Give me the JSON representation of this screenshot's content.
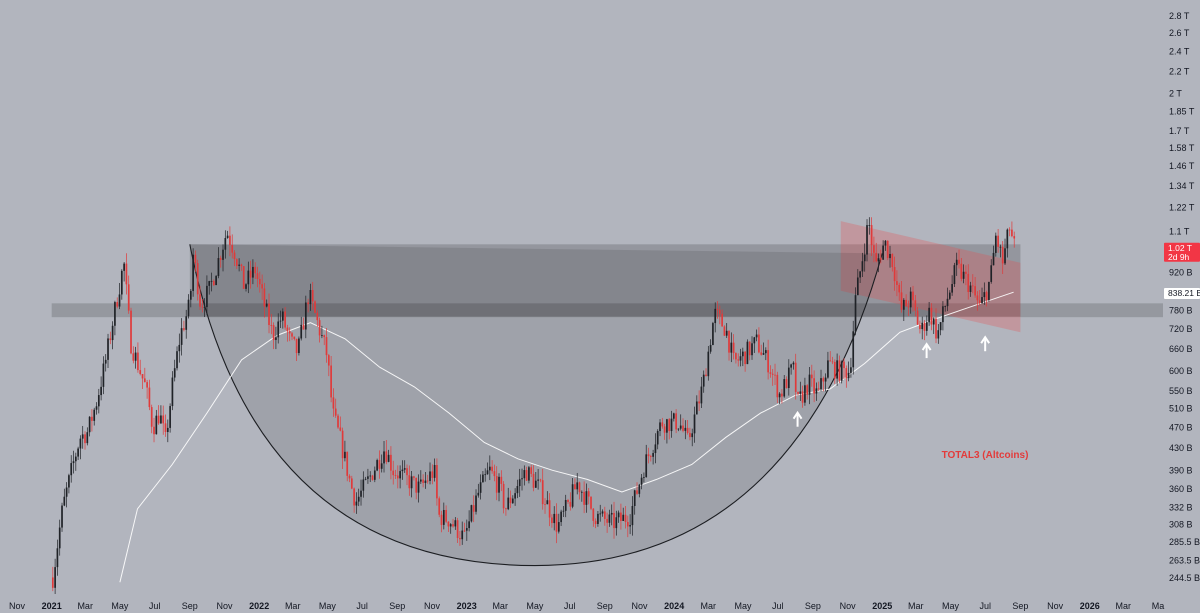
{
  "chart_data": {
    "type": "candlestick",
    "title": "TOTAL3 (Altcoins)",
    "y_scale": "log",
    "ylim": [
      230,
      2900
    ],
    "xlim": [
      "2020-11-01",
      "2026-05-01"
    ],
    "x_tick_labels": [
      {
        "date": "2020-11-01",
        "label": "Nov",
        "bold": false
      },
      {
        "date": "2021-01-01",
        "label": "2021",
        "bold": true
      },
      {
        "date": "2021-03-01",
        "label": "Mar",
        "bold": false
      },
      {
        "date": "2021-05-01",
        "label": "May",
        "bold": false
      },
      {
        "date": "2021-07-01",
        "label": "Jul",
        "bold": false
      },
      {
        "date": "2021-09-01",
        "label": "Sep",
        "bold": false
      },
      {
        "date": "2021-11-01",
        "label": "Nov",
        "bold": false
      },
      {
        "date": "2022-01-01",
        "label": "2022",
        "bold": true
      },
      {
        "date": "2022-03-01",
        "label": "Mar",
        "bold": false
      },
      {
        "date": "2022-05-01",
        "label": "May",
        "bold": false
      },
      {
        "date": "2022-07-01",
        "label": "Jul",
        "bold": false
      },
      {
        "date": "2022-09-01",
        "label": "Sep",
        "bold": false
      },
      {
        "date": "2022-11-01",
        "label": "Nov",
        "bold": false
      },
      {
        "date": "2023-01-01",
        "label": "2023",
        "bold": true
      },
      {
        "date": "2023-03-01",
        "label": "Mar",
        "bold": false
      },
      {
        "date": "2023-05-01",
        "label": "May",
        "bold": false
      },
      {
        "date": "2023-07-01",
        "label": "Jul",
        "bold": false
      },
      {
        "date": "2023-09-01",
        "label": "Sep",
        "bold": false
      },
      {
        "date": "2023-11-01",
        "label": "Nov",
        "bold": false
      },
      {
        "date": "2024-01-01",
        "label": "2024",
        "bold": true
      },
      {
        "date": "2024-03-01",
        "label": "Mar",
        "bold": false
      },
      {
        "date": "2024-05-01",
        "label": "May",
        "bold": false
      },
      {
        "date": "2024-07-01",
        "label": "Jul",
        "bold": false
      },
      {
        "date": "2024-09-01",
        "label": "Sep",
        "bold": false
      },
      {
        "date": "2024-11-01",
        "label": "Nov",
        "bold": false
      },
      {
        "date": "2025-01-01",
        "label": "2025",
        "bold": true
      },
      {
        "date": "2025-03-01",
        "label": "Mar",
        "bold": false
      },
      {
        "date": "2025-05-01",
        "label": "May",
        "bold": false
      },
      {
        "date": "2025-07-01",
        "label": "Jul",
        "bold": false
      },
      {
        "date": "2025-09-01",
        "label": "Sep",
        "bold": false
      },
      {
        "date": "2025-11-01",
        "label": "Nov",
        "bold": false
      },
      {
        "date": "2026-01-01",
        "label": "2026",
        "bold": true
      },
      {
        "date": "2026-03-01",
        "label": "Mar",
        "bold": false
      },
      {
        "date": "2026-05-01",
        "label": "Ma",
        "bold": false
      }
    ],
    "y_tick_labels": [
      {
        "value": 2800,
        "label": "2.8 T"
      },
      {
        "value": 2600,
        "label": "2.6 T"
      },
      {
        "value": 2400,
        "label": "2.4 T"
      },
      {
        "value": 2200,
        "label": "2.2 T"
      },
      {
        "value": 2000,
        "label": "2 T"
      },
      {
        "value": 1850,
        "label": "1.85 T"
      },
      {
        "value": 1700,
        "label": "1.7 T"
      },
      {
        "value": 1580,
        "label": "1.58 T"
      },
      {
        "value": 1460,
        "label": "1.46 T"
      },
      {
        "value": 1340,
        "label": "1.34 T"
      },
      {
        "value": 1220,
        "label": "1.22 T"
      },
      {
        "value": 1100,
        "label": "1.1 T"
      },
      {
        "value": 920,
        "label": "920 B"
      },
      {
        "value": 780,
        "label": "780 B"
      },
      {
        "value": 720,
        "label": "720 B"
      },
      {
        "value": 660,
        "label": "660 B"
      },
      {
        "value": 600,
        "label": "600 B"
      },
      {
        "value": 550,
        "label": "550 B"
      },
      {
        "value": 510,
        "label": "510 B"
      },
      {
        "value": 470,
        "label": "470 B"
      },
      {
        "value": 430,
        "label": "430 B"
      },
      {
        "value": 390,
        "label": "390 B"
      },
      {
        "value": 360,
        "label": "360 B"
      },
      {
        "value": 332,
        "label": "332 B"
      },
      {
        "value": 308,
        "label": "308 B"
      },
      {
        "value": 285.5,
        "label": "285.5 B"
      },
      {
        "value": 263.5,
        "label": "263.5 B"
      },
      {
        "value": 244.5,
        "label": "244.5 B"
      }
    ],
    "price_path": [
      [
        "2021-01-03",
        245
      ],
      [
        "2021-01-20",
        330
      ],
      [
        "2021-02-05",
        390
      ],
      [
        "2021-02-20",
        450
      ],
      [
        "2021-03-05",
        460
      ],
      [
        "2021-03-20",
        520
      ],
      [
        "2021-04-05",
        620
      ],
      [
        "2021-04-20",
        760
      ],
      [
        "2021-05-08",
        960
      ],
      [
        "2021-05-20",
        680
      ],
      [
        "2021-06-01",
        620
      ],
      [
        "2021-06-15",
        560
      ],
      [
        "2021-06-28",
        470
      ],
      [
        "2021-07-10",
        500
      ],
      [
        "2021-07-20",
        440
      ],
      [
        "2021-08-01",
        560
      ],
      [
        "2021-08-15",
        700
      ],
      [
        "2021-09-01",
        800
      ],
      [
        "2021-09-07",
        1000
      ],
      [
        "2021-09-20",
        800
      ],
      [
        "2021-10-05",
        850
      ],
      [
        "2021-10-20",
        960
      ],
      [
        "2021-11-05",
        1100
      ],
      [
        "2021-11-20",
        1000
      ],
      [
        "2021-12-05",
        870
      ],
      [
        "2021-12-25",
        930
      ],
      [
        "2022-01-10",
        800
      ],
      [
        "2022-01-25",
        700
      ],
      [
        "2022-02-10",
        760
      ],
      [
        "2022-02-25",
        680
      ],
      [
        "2022-03-10",
        650
      ],
      [
        "2022-03-29",
        840
      ],
      [
        "2022-04-15",
        730
      ],
      [
        "2022-05-01",
        640
      ],
      [
        "2022-05-10",
        500
      ],
      [
        "2022-05-25",
        440
      ],
      [
        "2022-06-10",
        370
      ],
      [
        "2022-06-20",
        340
      ],
      [
        "2022-07-10",
        370
      ],
      [
        "2022-08-10",
        430
      ],
      [
        "2022-08-25",
        390
      ],
      [
        "2022-09-10",
        380
      ],
      [
        "2022-09-25",
        370
      ],
      [
        "2022-10-10",
        360
      ],
      [
        "2022-11-05",
        390
      ],
      [
        "2022-11-12",
        320
      ],
      [
        "2022-12-01",
        315
      ],
      [
        "2022-12-28",
        290
      ],
      [
        "2023-01-20",
        350
      ],
      [
        "2023-02-10",
        390
      ],
      [
        "2023-03-01",
        360
      ],
      [
        "2023-03-10",
        330
      ],
      [
        "2023-04-15",
        390
      ],
      [
        "2023-05-10",
        360
      ],
      [
        "2023-06-10",
        305
      ],
      [
        "2023-07-01",
        340
      ],
      [
        "2023-07-15",
        370
      ],
      [
        "2023-08-15",
        320
      ],
      [
        "2023-09-15",
        310
      ],
      [
        "2023-10-15",
        320
      ],
      [
        "2023-11-10",
        400
      ],
      [
        "2023-12-10",
        480
      ],
      [
        "2024-01-10",
        480
      ],
      [
        "2024-01-25",
        440
      ],
      [
        "2024-02-20",
        560
      ],
      [
        "2024-03-12",
        770
      ],
      [
        "2024-04-01",
        720
      ],
      [
        "2024-04-15",
        620
      ],
      [
        "2024-05-01",
        640
      ],
      [
        "2024-05-25",
        680
      ],
      [
        "2024-06-15",
        620
      ],
      [
        "2024-07-05",
        540
      ],
      [
        "2024-07-28",
        610
      ],
      [
        "2024-08-05",
        520
      ],
      [
        "2024-08-25",
        570
      ],
      [
        "2024-09-10",
        540
      ],
      [
        "2024-09-28",
        620
      ],
      [
        "2024-10-15",
        600
      ],
      [
        "2024-11-05",
        600
      ],
      [
        "2024-11-15",
        820
      ],
      [
        "2024-12-08",
        1150
      ],
      [
        "2024-12-20",
        940
      ],
      [
        "2025-01-05",
        1050
      ],
      [
        "2025-01-20",
        960
      ],
      [
        "2025-02-03",
        780
      ],
      [
        "2025-02-20",
        820
      ],
      [
        "2025-03-10",
        710
      ],
      [
        "2025-03-25",
        780
      ],
      [
        "2025-04-08",
        700
      ],
      [
        "2025-04-25",
        820
      ],
      [
        "2025-05-12",
        940
      ],
      [
        "2025-06-01",
        880
      ],
      [
        "2025-06-22",
        790
      ],
      [
        "2025-07-10",
        890
      ],
      [
        "2025-07-20",
        1080
      ],
      [
        "2025-08-01",
        960
      ],
      [
        "2025-08-13",
        1120
      ],
      [
        "2025-08-22",
        1020
      ]
    ],
    "series": [
      {
        "name": "",
        "type": "moving-average",
        "color": "#ffffff",
        "points": [
          [
            "2021-05-01",
            240
          ],
          [
            "2021-06-01",
            330
          ],
          [
            "2021-08-01",
            400
          ],
          [
            "2021-10-01",
            500
          ],
          [
            "2021-12-01",
            630
          ],
          [
            "2022-02-01",
            700
          ],
          [
            "2022-04-01",
            740
          ],
          [
            "2022-06-01",
            690
          ],
          [
            "2022-08-01",
            610
          ],
          [
            "2022-10-01",
            560
          ],
          [
            "2022-12-01",
            500
          ],
          [
            "2023-02-01",
            440
          ],
          [
            "2023-04-01",
            410
          ],
          [
            "2023-06-01",
            390
          ],
          [
            "2023-08-01",
            375
          ],
          [
            "2023-10-01",
            355
          ],
          [
            "2023-12-01",
            375
          ],
          [
            "2024-02-01",
            400
          ],
          [
            "2024-04-01",
            450
          ],
          [
            "2024-06-01",
            500
          ],
          [
            "2024-08-01",
            540
          ],
          [
            "2024-10-01",
            555
          ],
          [
            "2024-12-01",
            620
          ],
          [
            "2025-02-01",
            710
          ],
          [
            "2025-04-01",
            750
          ],
          [
            "2025-06-01",
            790
          ],
          [
            "2025-08-20",
            845
          ]
        ]
      }
    ],
    "zones": [
      {
        "kind": "resistance-box",
        "from": "2021-09-01",
        "to": "2025-09-01",
        "low": 760,
        "high": 1040,
        "color": "#000000"
      },
      {
        "kind": "support-band",
        "from": "2021-01-01",
        "to": "2026-05-10",
        "low": 758,
        "high": 805,
        "color": "#000000"
      },
      {
        "kind": "falling-channel",
        "color": "#e84b4b",
        "top": [
          [
            "2024-10-20",
            1150
          ],
          [
            "2025-09-01",
            960
          ]
        ],
        "bottom": [
          [
            "2024-10-20",
            850
          ],
          [
            "2025-09-01",
            710
          ]
        ]
      }
    ],
    "cup_curve": [
      [
        "2021-09-01",
        1040
      ],
      [
        "2023-05-01",
        258
      ],
      [
        "2025-01-01",
        1000
      ]
    ],
    "annotations": [
      {
        "kind": "up-arrow",
        "date": "2024-08-05",
        "value": 490
      },
      {
        "kind": "up-arrow",
        "date": "2025-03-20",
        "value": 660
      },
      {
        "kind": "up-arrow",
        "date": "2025-07-01",
        "value": 680
      }
    ],
    "price_tags": [
      {
        "value": 1020,
        "line1": "1.02 T",
        "line2": "2d 9h",
        "background": "#f23645",
        "color": "#ffffff"
      },
      {
        "value": 838.21,
        "line1": "838.21 B",
        "line2": "",
        "background": "#ffffff",
        "color": "#131722"
      }
    ],
    "grid": false,
    "colors": {
      "background": "#b2b5be",
      "up": "#1f2227",
      "down": "#e03a3a",
      "title": "#e33b3b"
    }
  }
}
